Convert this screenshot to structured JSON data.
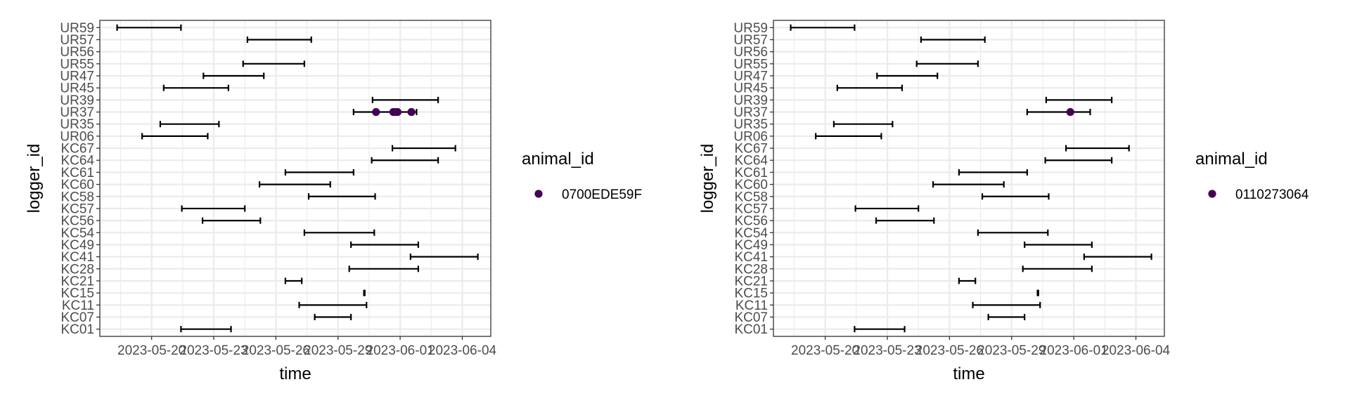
{
  "colors": {
    "point": "#440154",
    "segment": "#000000",
    "grid": "#ebebeb",
    "panel_border": "#333333",
    "tick_text": "#4d4d4d",
    "title_text": "#000000"
  },
  "x_ticks": [
    "2023-05-20",
    "2023-05-23",
    "2023-05-26",
    "2023-05-29",
    "2023-06-01",
    "2023-06-04"
  ],
  "loggers": [
    "KC01",
    "KC07",
    "KC11",
    "KC15",
    "KC21",
    "KC28",
    "KC41",
    "KC49",
    "KC54",
    "KC56",
    "KC57",
    "KC58",
    "KC60",
    "KC61",
    "KC64",
    "KC67",
    "UR06",
    "UR35",
    "UR37",
    "UR39",
    "UR45",
    "UR47",
    "UR55",
    "UR56",
    "UR57",
    "UR59"
  ],
  "chart_data": [
    {
      "type": "scatter",
      "xlabel": "time",
      "ylabel": "logger_id",
      "legend_title": "animal_id",
      "legend_position": "right",
      "grid": true,
      "xlim": [
        "2023-05-17T12:00",
        "2023-06-05T09:00"
      ],
      "categories": [
        "KC01",
        "KC07",
        "KC11",
        "KC15",
        "KC21",
        "KC28",
        "KC41",
        "KC49",
        "KC54",
        "KC56",
        "KC57",
        "KC58",
        "KC60",
        "KC61",
        "KC64",
        "KC67",
        "UR06",
        "UR35",
        "UR37",
        "UR39",
        "UR45",
        "UR47",
        "UR55",
        "UR56",
        "UR57",
        "UR59"
      ],
      "intervals": [
        {
          "logger": "KC01",
          "start": "2023-05-21T10:00",
          "end": "2023-05-23T20:00"
        },
        {
          "logger": "KC07",
          "start": "2023-05-27T21:00",
          "end": "2023-05-29T15:00"
        },
        {
          "logger": "KC11",
          "start": "2023-05-27T03:00",
          "end": "2023-05-30T09:00"
        },
        {
          "logger": "KC15",
          "start": "2023-05-30T06:00",
          "end": "2023-05-30T07:00"
        },
        {
          "logger": "KC21",
          "start": "2023-05-26T11:00",
          "end": "2023-05-27T06:00"
        },
        {
          "logger": "KC28",
          "start": "2023-05-29T13:00",
          "end": "2023-06-01T21:00"
        },
        {
          "logger": "KC41",
          "start": "2023-06-01T12:00",
          "end": "2023-06-04T18:00"
        },
        {
          "logger": "KC49",
          "start": "2023-05-29T15:00",
          "end": "2023-06-01T21:00"
        },
        {
          "logger": "KC54",
          "start": "2023-05-27T09:00",
          "end": "2023-05-30T18:00"
        },
        {
          "logger": "KC56",
          "start": "2023-05-22T11:00",
          "end": "2023-05-25T06:00"
        },
        {
          "logger": "KC57",
          "start": "2023-05-21T11:00",
          "end": "2023-05-24T12:00"
        },
        {
          "logger": "KC58",
          "start": "2023-05-27T14:00",
          "end": "2023-05-30T19:00"
        },
        {
          "logger": "KC60",
          "start": "2023-05-25T05:00",
          "end": "2023-05-28T15:00"
        },
        {
          "logger": "KC61",
          "start": "2023-05-26T11:00",
          "end": "2023-05-29T18:00"
        },
        {
          "logger": "KC64",
          "start": "2023-05-30T15:00",
          "end": "2023-06-02T20:00"
        },
        {
          "logger": "KC67",
          "start": "2023-05-31T15:00",
          "end": "2023-06-03T16:00"
        },
        {
          "logger": "UR06",
          "start": "2023-05-19T13:00",
          "end": "2023-05-22T17:00"
        },
        {
          "logger": "UR35",
          "start": "2023-05-20T10:00",
          "end": "2023-05-23T06:00"
        },
        {
          "logger": "UR37",
          "start": "2023-05-29T18:00",
          "end": "2023-06-01T19:00"
        },
        {
          "logger": "UR39",
          "start": "2023-05-30T16:00",
          "end": "2023-06-02T20:00"
        },
        {
          "logger": "UR45",
          "start": "2023-05-20T14:00",
          "end": "2023-05-23T17:00"
        },
        {
          "logger": "UR47",
          "start": "2023-05-22T12:00",
          "end": "2023-05-25T10:00"
        },
        {
          "logger": "UR55",
          "start": "2023-05-24T10:00",
          "end": "2023-05-27T09:00"
        },
        {
          "logger": "UR57",
          "start": "2023-05-24T15:00",
          "end": "2023-05-27T17:00"
        },
        {
          "logger": "UR59",
          "start": "2023-05-18T08:00",
          "end": "2023-05-21T10:00"
        }
      ],
      "series": [
        {
          "name": "0700EDE59F",
          "points": [
            {
              "x": "2023-05-30T20:00",
              "y": "UR37"
            },
            {
              "x": "2023-05-31T16:00",
              "y": "UR37"
            },
            {
              "x": "2023-05-31T19:00",
              "y": "UR37"
            },
            {
              "x": "2023-05-31T21:00",
              "y": "UR37"
            },
            {
              "x": "2023-06-01T13:00",
              "y": "UR37"
            }
          ]
        }
      ]
    },
    {
      "type": "scatter",
      "xlabel": "time",
      "ylabel": "logger_id",
      "legend_title": "animal_id",
      "legend_position": "right",
      "grid": true,
      "xlim": [
        "2023-05-17T12:00",
        "2023-06-05T09:00"
      ],
      "categories": [
        "KC01",
        "KC07",
        "KC11",
        "KC15",
        "KC21",
        "KC28",
        "KC41",
        "KC49",
        "KC54",
        "KC56",
        "KC57",
        "KC58",
        "KC60",
        "KC61",
        "KC64",
        "KC67",
        "UR06",
        "UR35",
        "UR37",
        "UR39",
        "UR45",
        "UR47",
        "UR55",
        "UR56",
        "UR57",
        "UR59"
      ],
      "intervals": [
        {
          "logger": "KC01",
          "start": "2023-05-21T10:00",
          "end": "2023-05-23T20:00"
        },
        {
          "logger": "KC07",
          "start": "2023-05-27T21:00",
          "end": "2023-05-29T15:00"
        },
        {
          "logger": "KC11",
          "start": "2023-05-27T03:00",
          "end": "2023-05-30T09:00"
        },
        {
          "logger": "KC15",
          "start": "2023-05-30T06:00",
          "end": "2023-05-30T07:00"
        },
        {
          "logger": "KC21",
          "start": "2023-05-26T11:00",
          "end": "2023-05-27T06:00"
        },
        {
          "logger": "KC28",
          "start": "2023-05-29T13:00",
          "end": "2023-06-01T21:00"
        },
        {
          "logger": "KC41",
          "start": "2023-06-01T12:00",
          "end": "2023-06-04T18:00"
        },
        {
          "logger": "KC49",
          "start": "2023-05-29T15:00",
          "end": "2023-06-01T21:00"
        },
        {
          "logger": "KC54",
          "start": "2023-05-27T09:00",
          "end": "2023-05-30T18:00"
        },
        {
          "logger": "KC56",
          "start": "2023-05-22T11:00",
          "end": "2023-05-25T06:00"
        },
        {
          "logger": "KC57",
          "start": "2023-05-21T11:00",
          "end": "2023-05-24T12:00"
        },
        {
          "logger": "KC58",
          "start": "2023-05-27T14:00",
          "end": "2023-05-30T19:00"
        },
        {
          "logger": "KC60",
          "start": "2023-05-25T05:00",
          "end": "2023-05-28T15:00"
        },
        {
          "logger": "KC61",
          "start": "2023-05-26T11:00",
          "end": "2023-05-29T18:00"
        },
        {
          "logger": "KC64",
          "start": "2023-05-30T15:00",
          "end": "2023-06-02T20:00"
        },
        {
          "logger": "KC67",
          "start": "2023-05-31T15:00",
          "end": "2023-06-03T16:00"
        },
        {
          "logger": "UR06",
          "start": "2023-05-19T13:00",
          "end": "2023-05-22T17:00"
        },
        {
          "logger": "UR35",
          "start": "2023-05-20T10:00",
          "end": "2023-05-23T06:00"
        },
        {
          "logger": "UR37",
          "start": "2023-05-29T18:00",
          "end": "2023-06-01T19:00"
        },
        {
          "logger": "UR39",
          "start": "2023-05-30T16:00",
          "end": "2023-06-02T20:00"
        },
        {
          "logger": "UR45",
          "start": "2023-05-20T14:00",
          "end": "2023-05-23T17:00"
        },
        {
          "logger": "UR47",
          "start": "2023-05-22T12:00",
          "end": "2023-05-25T10:00"
        },
        {
          "logger": "UR55",
          "start": "2023-05-24T10:00",
          "end": "2023-05-27T09:00"
        },
        {
          "logger": "UR57",
          "start": "2023-05-24T15:00",
          "end": "2023-05-27T17:00"
        },
        {
          "logger": "UR59",
          "start": "2023-05-18T08:00",
          "end": "2023-05-21T10:00"
        }
      ],
      "series": [
        {
          "name": "0110273064",
          "points": [
            {
              "x": "2023-05-31T20:00",
              "y": "UR37"
            }
          ]
        }
      ]
    }
  ]
}
